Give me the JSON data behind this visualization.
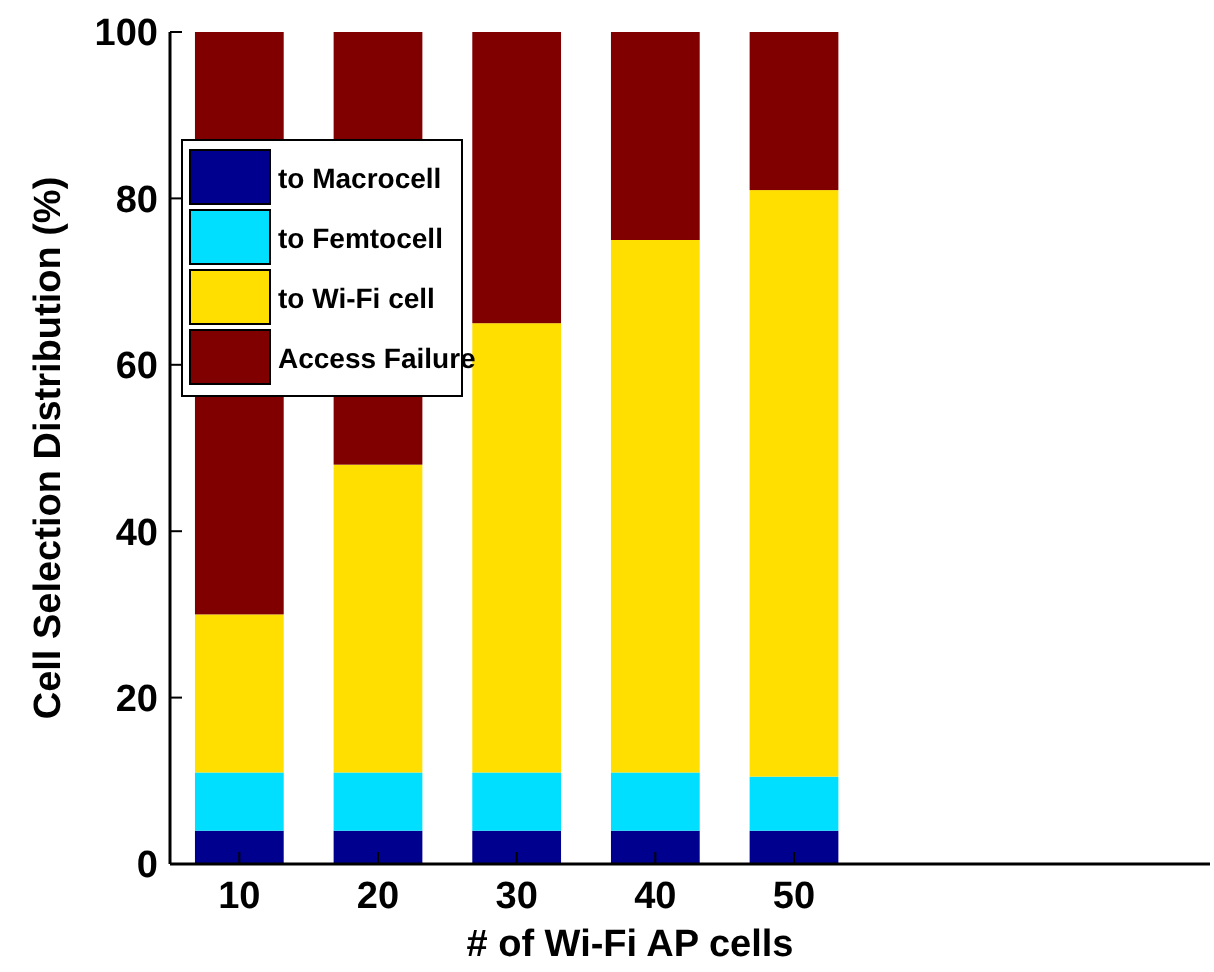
{
  "chart_data": {
    "type": "bar",
    "stacked": true,
    "xlabel": "# of Wi-Fi AP cells",
    "ylabel": "Cell Selection Distribution (%)",
    "x": [
      10,
      20,
      30,
      40,
      50
    ],
    "xlim": [
      5,
      80
    ],
    "xticks": [
      10,
      20,
      30,
      40,
      50
    ],
    "ylim": [
      0,
      100
    ],
    "yticks": [
      0,
      20,
      40,
      60,
      80,
      100
    ],
    "legend": "top left",
    "series": [
      {
        "name": "to Macrocell",
        "color": "#00008f",
        "values": [
          4,
          4,
          4,
          4,
          4
        ]
      },
      {
        "name": "to Femtocell",
        "color": "#00dfff",
        "values": [
          7,
          7,
          7,
          7,
          6.5
        ]
      },
      {
        "name": "to Wi-Fi cell",
        "color": "#ffdf00",
        "values": [
          19,
          37,
          54,
          64,
          70.5
        ]
      },
      {
        "name": "Access Failure",
        "color": "#800000",
        "values": [
          70,
          52,
          35,
          25,
          19
        ]
      }
    ]
  }
}
